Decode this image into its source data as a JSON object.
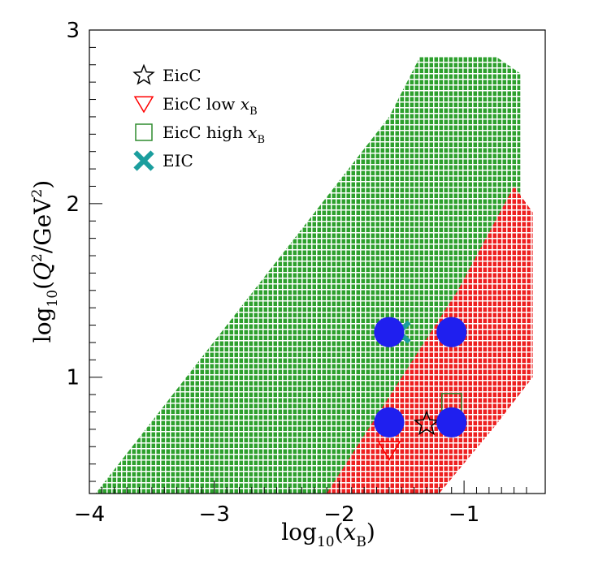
{
  "chart_data": {
    "type": "scatter",
    "xlim": [
      -4,
      -0.35
    ],
    "ylim": [
      0.33,
      3
    ],
    "x_ticks": [
      -4,
      -3,
      -2,
      -1
    ],
    "x_tick_labels": [
      "−4",
      "−3",
      "−2",
      "−1"
    ],
    "y_ticks": [
      1,
      2,
      3
    ],
    "y_tick_labels": [
      "1",
      "2",
      "3"
    ],
    "xlabel": {
      "pre": "log",
      "sub": "10",
      "mid": "(",
      "var": "x",
      "varsub": "B",
      "post": ")"
    },
    "ylabel": {
      "pre": "log",
      "sub": "10",
      "mid": "(",
      "var": "Q",
      "sup": "2",
      "rest": "/GeV",
      "sup2": "2",
      "post": ")"
    },
    "legend_position": "top-left",
    "legend": [
      {
        "marker": "star",
        "color": "#000000",
        "label": "EicC",
        "var": "",
        "varsub": ""
      },
      {
        "marker": "triangle-down",
        "color": "#ff0000",
        "label": "EicC low ",
        "var": "x",
        "varsub": "B"
      },
      {
        "marker": "square",
        "color": "#2e8b2e",
        "label": "EicC high ",
        "var": "x",
        "varsub": "B"
      },
      {
        "marker": "x-cross",
        "color": "#1b9e9e",
        "label": "EIC",
        "var": "",
        "varsub": ""
      }
    ],
    "regions": [
      {
        "name": "EicC high x_B",
        "color": "#2e9e2e",
        "polygon": [
          [
            -3.95,
            0.33
          ],
          [
            -1.6,
            2.5
          ],
          [
            -1.35,
            2.85
          ],
          [
            -0.75,
            2.85
          ],
          [
            -0.55,
            2.75
          ],
          [
            -0.55,
            1.6
          ],
          [
            -1.15,
            1.02
          ],
          [
            -2.1,
            0.33
          ]
        ]
      },
      {
        "name": "EicC low x_B",
        "color": "#e02020",
        "polygon": [
          [
            -2.1,
            0.33
          ],
          [
            -1.05,
            1.5
          ],
          [
            -0.6,
            2.1
          ],
          [
            -0.45,
            1.95
          ],
          [
            -0.45,
            1.0
          ],
          [
            -0.75,
            0.72
          ],
          [
            -1.2,
            0.33
          ]
        ]
      }
    ],
    "points": [
      {
        "series": "EicC",
        "marker": "star",
        "color": "#000000",
        "x": -1.3,
        "y": 0.73
      },
      {
        "series": "EicC low x_B",
        "marker": "triangle-down",
        "color": "#ff0000",
        "x": -1.6,
        "y": 0.58
      },
      {
        "series": "EicC high x_B",
        "marker": "square",
        "color": "#2e8b2e",
        "x": -1.1,
        "y": 0.85
      },
      {
        "series": "EIC",
        "marker": "x-cross",
        "color": "#1b9e9e",
        "x": -1.52,
        "y": 1.26
      },
      {
        "series": "blue",
        "marker": "circle",
        "color": "#1f1fef",
        "x": -1.6,
        "y": 1.26
      },
      {
        "series": "blue",
        "marker": "circle",
        "color": "#1f1fef",
        "x": -1.1,
        "y": 1.26
      },
      {
        "series": "blue",
        "marker": "circle",
        "color": "#1f1fef",
        "x": -1.6,
        "y": 0.74
      },
      {
        "series": "blue",
        "marker": "circle",
        "color": "#1f1fef",
        "x": -1.1,
        "y": 0.74
      }
    ]
  }
}
